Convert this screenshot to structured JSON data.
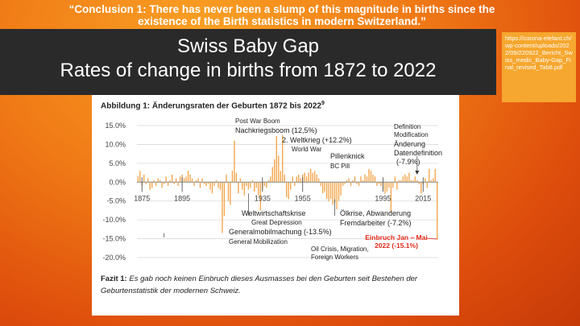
{
  "slide": {
    "conclusion": "“Conclusion 1: There has never been a slump of this magnitude in births since the existence of the Birth statistics in modern Switzerland.”",
    "title_line1": "Swiss Baby Gap",
    "title_line2": "Rates of change in births from 1872 to 2022",
    "source_url": "https://corona-elefant.ch/wp-content/uploads/2022/09/220922_Bericht_Swiss_medic_Baby-Gap_Final_revised_Tab8.pdf"
  },
  "figure": {
    "title": "Abbildung 1: Änderungsraten der Geburten 1872 bis 2022",
    "title_sup": "9",
    "fazit_label": "Fazit 1:",
    "fazit_text": "Es gab noch keinen Einbruch dieses Ausmasses bei den Geburten seit Bestehen der Geburtenstatistik der modernen Schweiz."
  },
  "annotations": {
    "postwar_en": "Post War Boom",
    "postwar_de": "Nachkriegsboom (12,5%)",
    "ww2_de": "2. Weltkrieg (+12.2%)",
    "ww2_en": "World War",
    "pill_de": "Pillenknick",
    "pill_en": "BC Pill",
    "def_en1": "Definition",
    "def_en2": "Modification",
    "def_de1": "Änderung",
    "def_de2": "Datendefinition",
    "def_val": "(-7.9%)",
    "crisis_de": "Weltwirtschaftskrise",
    "crisis_en": "Great Depression",
    "mob_de": "Generalmobilmachung (-13.5%)",
    "mob_en": "General Mobilization",
    "oil_de1": "Ölkrise, Abwanderung",
    "oil_de2": "Fremdarbeiter (-7.2%)",
    "oil_en1": "Oil Crisis, Migration,",
    "oil_en2": "Foreign Workers",
    "slump1": "Einbruch Jan – Mai",
    "slump2": "2022 (-15.1%)"
  },
  "chart_data": {
    "type": "bar",
    "title": "Abbildung 1: Änderungsraten der Geburten 1872 bis 2022",
    "x_start": 1873,
    "x_end": 2022,
    "ylim": [
      -20,
      15
    ],
    "y_ticks": [
      "15.0%",
      "10.0%",
      "5.0%",
      "0.0%",
      "-5.0%",
      "-10.0%",
      "-15.0%",
      "-20.0%"
    ],
    "y_tick_values": [
      15,
      10,
      5,
      0,
      -5,
      -10,
      -15,
      -20
    ],
    "x_ticks": [
      "1875",
      "1895",
      "1935",
      "1955",
      "1995",
      "2015"
    ],
    "x_tick_values": [
      1875,
      1895,
      1935,
      1955,
      1995,
      2015
    ],
    "grid": "horizontal",
    "bar_color": "#f3a64c",
    "values": [
      1.5,
      3.0,
      -1.0,
      2.0,
      -0.5,
      1.0,
      -2.0,
      -1.5,
      0.5,
      -1.0,
      1.0,
      0.5,
      -1.5,
      -0.5,
      1.5,
      -1.0,
      0.5,
      2.0,
      -0.5,
      1.0,
      -1.0,
      1.5,
      2.0,
      1.0,
      1.5,
      3.0,
      2.0,
      1.0,
      -1.0,
      0.5,
      1.0,
      -1.5,
      1.0,
      -0.5,
      -1.0,
      -0.5,
      -2.0,
      -3.0,
      -1.0,
      0.5,
      -1.5,
      -2.0,
      -13.5,
      -9.0,
      2.0,
      -5.0,
      -6.0,
      3.0,
      11.0,
      2.5,
      -3.0,
      1.0,
      -2.0,
      -3.5,
      -1.0,
      -2.0,
      -1.5,
      0.5,
      -2.5,
      -1.5,
      -3.5,
      -7.5,
      -2.0,
      -1.0,
      -1.5,
      0.5,
      1.5,
      4.0,
      6.0,
      12.2,
      7.0,
      3.0,
      12.5,
      2.0,
      -4.0,
      -4.5,
      -2.0,
      1.5,
      -1.0,
      1.5,
      2.0,
      1.0,
      2.0,
      2.5,
      1.5,
      2.5,
      3.5,
      2.5,
      3.0,
      2.0,
      1.0,
      -1.0,
      -3.0,
      -2.5,
      -4.5,
      -5.0,
      -4.5,
      -6.0,
      -5.5,
      -7.2,
      -5.0,
      -3.5,
      -1.0,
      -0.5,
      0.5,
      1.0,
      -1.0,
      0.5,
      1.5,
      -0.5,
      -1.0,
      1.5,
      0.5,
      2.0,
      1.5,
      3.5,
      3.0,
      2.0,
      1.5,
      -1.0,
      -0.5,
      -1.0,
      -2.0,
      -3.0,
      -2.5,
      -1.5,
      -7.9,
      -1.5,
      1.5,
      -2.0,
      0.5,
      0.5,
      1.5,
      2.0,
      1.5,
      2.5,
      0.5,
      0.5,
      1.5,
      0.5,
      -0.5,
      -3.0,
      -0.5,
      1.0,
      -1.5,
      3.5,
      0.5,
      1.0,
      3.5,
      -15.1
    ]
  }
}
